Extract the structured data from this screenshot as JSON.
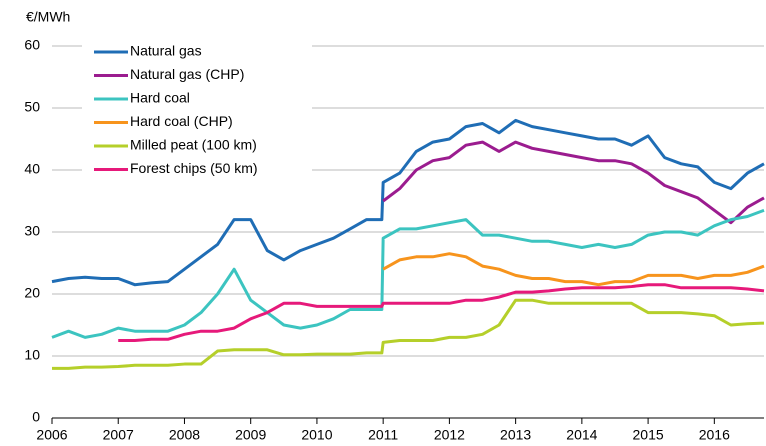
{
  "chart_data": {
    "type": "line",
    "y_label": "€/MWh",
    "x": [
      2006,
      2006.25,
      2006.5,
      2006.75,
      2007,
      2007.25,
      2007.5,
      2007.75,
      2008,
      2008.25,
      2008.5,
      2008.75,
      2009,
      2009.25,
      2009.5,
      2009.75,
      2010,
      2010.25,
      2010.5,
      2010.75,
      2010.98,
      2011,
      2011.25,
      2011.5,
      2011.75,
      2012,
      2012.25,
      2012.5,
      2012.75,
      2013,
      2013.25,
      2013.5,
      2013.75,
      2014,
      2014.25,
      2014.5,
      2014.75,
      2015,
      2015.25,
      2015.5,
      2015.75,
      2016,
      2016.25,
      2016.5,
      2016.75
    ],
    "series": [
      {
        "name": "Natural gas",
        "color": "#1f6db5",
        "values": [
          22,
          22.5,
          22.7,
          22.5,
          22.5,
          21.5,
          21.8,
          22,
          24,
          26,
          28,
          32,
          32,
          27,
          25.5,
          27,
          28,
          29,
          30.5,
          32,
          32,
          38,
          39.5,
          43,
          44.5,
          45,
          47,
          47.5,
          46,
          48,
          47,
          46.5,
          46,
          45.5,
          45,
          45,
          44,
          45.5,
          42,
          41,
          40.5,
          38,
          37,
          39.5,
          41
        ]
      },
      {
        "name": "Natural gas (CHP)",
        "color": "#9b1c8f",
        "values": [
          null,
          null,
          null,
          null,
          null,
          null,
          null,
          null,
          null,
          null,
          null,
          null,
          null,
          null,
          null,
          null,
          null,
          null,
          null,
          null,
          null,
          35,
          37,
          40,
          41.5,
          42,
          44,
          44.5,
          43,
          44.5,
          43.5,
          43,
          42.5,
          42,
          41.5,
          41.5,
          41,
          39.5,
          37.5,
          36.5,
          35.5,
          33.5,
          31.5,
          34,
          35.5
        ]
      },
      {
        "name": "Hard coal",
        "color": "#3cc4c0",
        "values": [
          13,
          14,
          13,
          13.5,
          14.5,
          14,
          14,
          14,
          15,
          17,
          20,
          24,
          19,
          17,
          15,
          14.5,
          15,
          16,
          17.5,
          17.5,
          17.5,
          29,
          30.5,
          30.5,
          31,
          31.5,
          32,
          29.5,
          29.5,
          29,
          28.5,
          28.5,
          28,
          27.5,
          28,
          27.5,
          28,
          29.5,
          30,
          30,
          29.5,
          31,
          32,
          32.5,
          33.5
        ]
      },
      {
        "name": "Hard coal (CHP)",
        "color": "#f7941d",
        "values": [
          null,
          null,
          null,
          null,
          null,
          null,
          null,
          null,
          null,
          null,
          null,
          null,
          null,
          null,
          null,
          null,
          null,
          null,
          null,
          null,
          null,
          24,
          25.5,
          26,
          26,
          26.5,
          26,
          24.5,
          24,
          23,
          22.5,
          22.5,
          22,
          22,
          21.5,
          22,
          22,
          23,
          23,
          23,
          22.5,
          23,
          23,
          23.5,
          24.5
        ]
      },
      {
        "name": "Milled peat (100 km)",
        "color": "#b5cf2a",
        "values": [
          8,
          8,
          8.2,
          8.2,
          8.3,
          8.5,
          8.5,
          8.5,
          8.7,
          8.7,
          10.8,
          11,
          11,
          11,
          10.2,
          10.2,
          10.3,
          10.3,
          10.3,
          10.5,
          10.5,
          12.2,
          12.5,
          12.5,
          12.5,
          13,
          13,
          13.5,
          15,
          19,
          19,
          18.5,
          18.5,
          18.5,
          18.5,
          18.5,
          18.5,
          17,
          17,
          17,
          16.8,
          16.5,
          15,
          15.2,
          15.3
        ]
      },
      {
        "name": "Forest chips (50 km)",
        "color": "#e6197a",
        "values": [
          null,
          null,
          null,
          null,
          12.5,
          12.5,
          12.7,
          12.7,
          13.5,
          14,
          14,
          14.5,
          16,
          17,
          18.5,
          18.5,
          18,
          18,
          18,
          18,
          18,
          18.5,
          18.5,
          18.5,
          18.5,
          18.5,
          19,
          19,
          19.5,
          20.3,
          20.3,
          20.5,
          20.8,
          21,
          21,
          21,
          21.2,
          21.5,
          21.5,
          21,
          21,
          21,
          21,
          20.8,
          20.5
        ]
      }
    ],
    "xlim": [
      2006,
      2016.75
    ],
    "xticks": [
      2006,
      2007,
      2008,
      2009,
      2010,
      2011,
      2012,
      2013,
      2014,
      2015,
      2016
    ],
    "ylim": [
      0,
      60
    ],
    "yticks": [
      0,
      10,
      20,
      30,
      40,
      50,
      60
    ],
    "grid": true,
    "legend": "upper left"
  }
}
